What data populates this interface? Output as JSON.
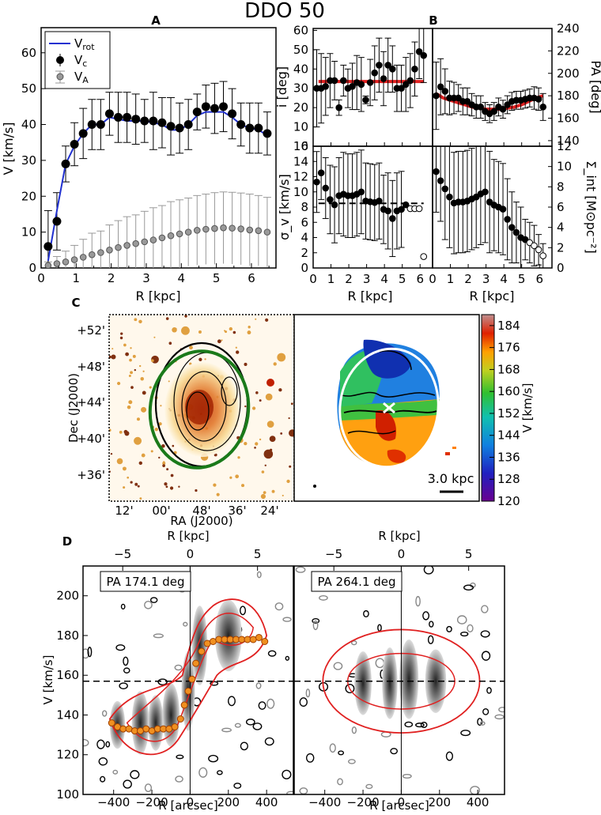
{
  "figure": {
    "title": "DDO 50",
    "panel_labels": [
      "A",
      "B",
      "C",
      "D"
    ]
  },
  "chart_data": [
    {
      "id": "A",
      "type": "line",
      "title": "A",
      "xlabel": "R [kpc]",
      "ylabel": "V [km/s]",
      "xlim": [
        0,
        6.7
      ],
      "ylim": [
        0,
        67
      ],
      "xticks": [
        "0",
        "1",
        "2",
        "3",
        "4",
        "5",
        "6"
      ],
      "yticks": [
        "0",
        "10",
        "20",
        "30",
        "40",
        "50",
        "60"
      ],
      "legend": [
        "V_rot",
        "V_c",
        "V_A"
      ],
      "legend_placement": "top-left",
      "series": [
        {
          "name": "V_c",
          "x": [
            0.2,
            0.45,
            0.7,
            0.95,
            1.2,
            1.45,
            1.7,
            1.95,
            2.2,
            2.45,
            2.7,
            2.95,
            3.2,
            3.45,
            3.7,
            3.95,
            4.2,
            4.45,
            4.7,
            4.95,
            5.2,
            5.45,
            5.7,
            5.95,
            6.2,
            6.45
          ],
          "y": [
            6,
            13,
            29,
            34.5,
            37.5,
            40,
            40,
            43,
            42,
            42,
            41.5,
            41,
            41,
            40.5,
            39.5,
            39,
            40,
            43.5,
            45,
            44.5,
            45,
            43,
            40,
            39,
            39,
            37.5
          ],
          "err": [
            10,
            8,
            5,
            6,
            7,
            7,
            7,
            6,
            7,
            7,
            7,
            6,
            8,
            7,
            8,
            7,
            7,
            5,
            6,
            7,
            7,
            7,
            6,
            7,
            7,
            6
          ]
        },
        {
          "name": "V_A",
          "x": [
            0.2,
            0.45,
            0.7,
            0.95,
            1.2,
            1.45,
            1.7,
            1.95,
            2.2,
            2.45,
            2.7,
            2.95,
            3.2,
            3.45,
            3.7,
            3.95,
            4.2,
            4.45,
            4.7,
            4.95,
            5.2,
            5.45,
            5.7,
            5.95,
            6.2,
            6.45
          ],
          "y": [
            0.7,
            1.2,
            1.7,
            2.3,
            3,
            3.7,
            4.3,
            5,
            5.7,
            6.3,
            6.8,
            7.3,
            7.8,
            8.4,
            9,
            9.5,
            10,
            10.5,
            10.8,
            11,
            11.2,
            11.1,
            10.9,
            10.6,
            10.4,
            10
          ],
          "err": [
            1,
            2,
            3,
            4,
            5,
            6,
            6,
            7,
            7.5,
            8,
            8,
            8.5,
            9,
            9,
            9.5,
            9.5,
            9.5,
            9.7,
            9.8,
            10,
            10,
            10,
            10,
            10,
            9.8,
            9.7
          ]
        },
        {
          "name": "V_rot",
          "x": [
            0.2,
            0.45,
            0.7,
            0.95,
            1.2,
            1.45,
            1.7,
            1.95,
            2.2,
            2.45,
            2.7,
            2.95,
            3.2,
            3.45,
            3.7,
            3.95,
            4.2,
            4.45,
            4.7,
            4.95,
            5.2,
            5.45,
            5.7,
            5.95,
            6.2,
            6.45
          ],
          "y": [
            2,
            16,
            29,
            34,
            37.5,
            40,
            40,
            42,
            41.5,
            41,
            41,
            41,
            40.5,
            40,
            38.5,
            38.5,
            40,
            42.5,
            43.5,
            43.5,
            43.5,
            42,
            40,
            39,
            38.5,
            37
          ]
        }
      ]
    },
    {
      "id": "B-inclination",
      "type": "scatter",
      "ylabel": "i [deg]",
      "xlim": [
        0,
        6.7
      ],
      "ylim": [
        0,
        61
      ],
      "yticks": [
        "0",
        "10",
        "20",
        "30",
        "40",
        "50",
        "60"
      ],
      "fit_value": 33.5,
      "x": [
        0.2,
        0.45,
        0.7,
        0.95,
        1.2,
        1.45,
        1.7,
        1.95,
        2.2,
        2.45,
        2.7,
        2.95,
        3.2,
        3.45,
        3.7,
        3.95,
        4.2,
        4.45,
        4.7,
        4.95,
        5.2,
        5.45,
        5.7,
        5.95,
        6.2
      ],
      "y": [
        30,
        30,
        31,
        34,
        34,
        20,
        34,
        30,
        31,
        33,
        32,
        24,
        33,
        38,
        42,
        35,
        42,
        40,
        30,
        30,
        32,
        34,
        40,
        49,
        47
      ],
      "err": [
        20,
        18,
        15,
        14,
        10,
        4,
        8,
        10,
        12,
        14,
        14,
        2,
        12,
        14,
        14,
        14,
        14,
        12,
        12,
        12,
        14,
        14,
        14,
        14,
        14
      ]
    },
    {
      "id": "B-PA",
      "type": "scatter",
      "ylabel": "PA [deg]",
      "xlim": [
        0,
        6.7
      ],
      "ylim": [
        135,
        240
      ],
      "yticks": [
        "140",
        "160",
        "180",
        "200",
        "220",
        "240"
      ],
      "fit_curve": [
        182,
        178,
        176,
        174,
        172,
        170,
        169,
        168,
        168,
        168,
        169,
        170,
        172,
        175,
        178,
        180
      ],
      "x": [
        0.2,
        0.45,
        0.7,
        0.95,
        1.2,
        1.45,
        1.7,
        1.95,
        2.2,
        2.45,
        2.7,
        2.95,
        3.2,
        3.45,
        3.7,
        3.95,
        4.2,
        4.45,
        4.7,
        4.95,
        5.2,
        5.45,
        5.7,
        5.95,
        6.2
      ],
      "y": [
        180,
        188,
        184,
        178,
        178,
        178,
        175,
        175,
        172,
        170,
        170,
        166,
        164,
        166,
        170,
        168,
        172,
        175,
        176,
        176,
        177,
        178,
        178,
        177,
        170
      ],
      "err": [
        30,
        25,
        20,
        15,
        14,
        12,
        12,
        12,
        10,
        10,
        10,
        8,
        8,
        8,
        8,
        8,
        8,
        8,
        8,
        8,
        8,
        8,
        10,
        10,
        12
      ]
    },
    {
      "id": "B-dispersion",
      "type": "scatter",
      "ylabel": "σ_v [km/s]",
      "xlabel": "R [kpc]",
      "xlim": [
        0,
        6.7
      ],
      "ylim": [
        0,
        16
      ],
      "xticks": [
        "0",
        "1",
        "2",
        "3",
        "4",
        "5",
        "6"
      ],
      "yticks": [
        "0",
        "2",
        "4",
        "6",
        "8",
        "10",
        "12",
        "14",
        "16"
      ],
      "fit_value": 8.5,
      "x": [
        0.2,
        0.45,
        0.7,
        0.95,
        1.2,
        1.45,
        1.7,
        1.95,
        2.2,
        2.45,
        2.7,
        2.95,
        3.2,
        3.45,
        3.7,
        3.95,
        4.2,
        4.45,
        4.7,
        4.95,
        5.2,
        5.45,
        5.7,
        5.95,
        6.2
      ],
      "y": [
        11.3,
        12.5,
        10.5,
        9,
        8.3,
        9.5,
        9.7,
        9.5,
        9.5,
        9.7,
        10,
        8.8,
        8.7,
        8.6,
        8.8,
        7.7,
        7.5,
        6.5,
        7.5,
        7.7,
        8.3,
        7.8,
        7.8,
        7.8,
        1.5
      ],
      "open_from_index": 21,
      "err": [
        4,
        3.5,
        4,
        4.5,
        5,
        5,
        5.5,
        5.5,
        5.5,
        5.5,
        5.5,
        5,
        5,
        5,
        5,
        4.5,
        5,
        5,
        5,
        5,
        0,
        0,
        0,
        0,
        0
      ]
    },
    {
      "id": "B-surface-density",
      "type": "scatter",
      "ylabel": "Σ_int [M⊙pc⁻²]",
      "xlabel": "R [kpc]",
      "xlim": [
        0,
        6.7
      ],
      "ylim": [
        0,
        12
      ],
      "xticks": [
        "0",
        "1",
        "2",
        "3",
        "4",
        "5",
        "6"
      ],
      "yticks": [
        "0",
        "2",
        "4",
        "6",
        "8",
        "10",
        "12"
      ],
      "x": [
        0.2,
        0.45,
        0.7,
        0.95,
        1.2,
        1.45,
        1.7,
        1.95,
        2.2,
        2.45,
        2.7,
        2.95,
        3.2,
        3.45,
        3.7,
        3.95,
        4.2,
        4.45,
        4.7,
        4.95,
        5.2,
        5.45,
        5.7,
        5.95,
        6.2
      ],
      "y": [
        9.5,
        8.6,
        7.8,
        7,
        6.4,
        6.5,
        6.5,
        6.6,
        6.8,
        7,
        7.3,
        7.5,
        6.5,
        6.2,
        6,
        5.8,
        4.8,
        4,
        3.5,
        3,
        2.8,
        2.5,
        2.2,
        1.8,
        1.2
      ],
      "open_from_index": 21,
      "err": [
        4,
        4,
        5,
        5,
        5,
        5,
        5,
        5,
        5,
        5,
        5,
        5,
        5,
        4.5,
        4.5,
        4.5,
        4,
        3.5,
        3,
        3,
        2,
        2,
        2,
        1.5,
        1.2
      ]
    },
    {
      "id": "C-map",
      "type": "heatmap",
      "xlabel": "RA (J2000)",
      "ylabel": "Dec (J2000)",
      "xticks": [
        "12'",
        "00'",
        "48'",
        "36'",
        "24'"
      ],
      "yticks": [
        "+52'",
        "+48'",
        "+44'",
        "+40'",
        "+36'"
      ],
      "colorbar_label": "V [km/s]",
      "colorbar_range": [
        120,
        188
      ],
      "colorbar_ticks": [
        "184",
        "176",
        "168",
        "160",
        "152",
        "144",
        "136",
        "128",
        "120"
      ],
      "scale_bar": "3.0 kpc"
    },
    {
      "id": "D-pv",
      "type": "heatmap",
      "xlabel": "R [arcsec]",
      "ylabel": "V [km/s]",
      "top_xlabel": "R [kpc]",
      "xlim": [
        -560,
        540
      ],
      "ylim": [
        100,
        215
      ],
      "systemic_velocity": 157,
      "xticks": [
        "−400",
        "−200",
        "0",
        "200",
        "400"
      ],
      "top_xticks": [
        "−5",
        "0",
        "5"
      ],
      "yticks": [
        "100",
        "120",
        "140",
        "160",
        "180",
        "200"
      ],
      "slices": [
        {
          "label": "PA 174.1 deg",
          "rotation_curve_x": [
            -410,
            -380,
            -350,
            -320,
            -290,
            -260,
            -230,
            -200,
            -170,
            -140,
            -110,
            -80,
            -50,
            -30,
            -10,
            10,
            30,
            60,
            90,
            120,
            150,
            180,
            210,
            240,
            270,
            300,
            330,
            360,
            390
          ],
          "rotation_curve_y": [
            136,
            134,
            133,
            133,
            132,
            132,
            133,
            132,
            133,
            133,
            133,
            134,
            138,
            145,
            152,
            158,
            166,
            172,
            176,
            177,
            178,
            178,
            178,
            178,
            178,
            178,
            178,
            179,
            177
          ]
        },
        {
          "label": "PA 264.1 deg"
        }
      ]
    }
  ]
}
